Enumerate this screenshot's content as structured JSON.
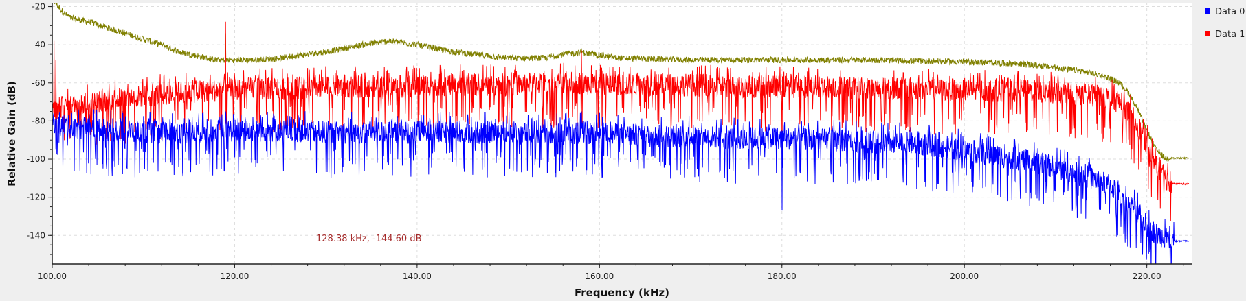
{
  "chart_data": {
    "type": "line",
    "title": "",
    "xlabel": "Frequency (kHz)",
    "ylabel": "Relative Gain (dB)",
    "xlim": [
      100,
      225
    ],
    "ylim": [
      -155,
      -18
    ],
    "x_ticks": [
      100,
      120,
      140,
      160,
      180,
      200,
      220
    ],
    "x_tick_labels": [
      "100.00",
      "120.00",
      "140.00",
      "160.00",
      "180.00",
      "200.00",
      "220.00"
    ],
    "y_ticks": [
      -20,
      -40,
      -60,
      -80,
      -100,
      -120,
      -140
    ],
    "y_tick_labels": [
      "-20",
      "-40",
      "-60",
      "-80",
      "-100",
      "-120",
      "-140"
    ],
    "grid": true,
    "legend_position": "right",
    "series": [
      {
        "name": "",
        "color": "#808000",
        "x": [
          100,
          101,
          102,
          104,
          106,
          108,
          110,
          112,
          114,
          116,
          118,
          120,
          122,
          125,
          128,
          131,
          134,
          137,
          140,
          143,
          146,
          150,
          154,
          156,
          158,
          162,
          170,
          180,
          190,
          200,
          206,
          210,
          213,
          215,
          217,
          218,
          219,
          220,
          221,
          222,
          223,
          224,
          225
        ],
        "values": [
          -16,
          -22,
          -26,
          -28,
          -31,
          -34,
          -37,
          -40,
          -44,
          -46,
          -48,
          -48,
          -48,
          -47,
          -45,
          -43,
          -40,
          -38,
          -40,
          -43,
          -45,
          -47,
          -47,
          -45,
          -44,
          -47,
          -48,
          -48,
          -48,
          -49,
          -50,
          -52,
          -54,
          -56,
          -60,
          -65,
          -74,
          -85,
          -95,
          -99.5,
          -99.5,
          -99.5,
          -99.5
        ],
        "noise": 1.6,
        "spikes": [
          [
            119,
            -34
          ],
          [
            158,
            -42
          ]
        ]
      },
      {
        "name": "Data 1",
        "color": "#ff0000",
        "x": [
          100,
          101,
          102,
          104,
          106,
          108,
          110,
          114,
          118,
          122,
          126,
          130,
          134,
          138,
          142,
          146,
          150,
          154,
          158,
          162,
          166,
          170,
          175,
          180,
          185,
          190,
          195,
          200,
          205,
          210,
          213,
          215,
          216,
          217,
          218,
          219,
          220,
          221,
          222,
          223,
          224,
          225
        ],
        "values": [
          -75,
          -73,
          -72,
          -71,
          -69,
          -68,
          -67,
          -65,
          -64,
          -63,
          -63,
          -62,
          -62,
          -62,
          -61,
          -61,
          -61,
          -60,
          -60,
          -61,
          -61,
          -61,
          -62,
          -62,
          -62,
          -63,
          -63,
          -64,
          -64,
          -65,
          -66,
          -67,
          -68,
          -70,
          -75,
          -82,
          -92,
          -102,
          -110,
          -113,
          -113,
          -113
        ],
        "noise": 6,
        "spikes": [
          [
            119,
            -28
          ],
          [
            100.2,
            -38
          ],
          [
            100.4,
            -48
          ],
          [
            158,
            -43
          ],
          [
            180,
            -100
          ],
          [
            221.5,
            -126
          ]
        ]
      },
      {
        "name": "Data 0",
        "color": "#0000ff",
        "x": [
          100,
          101,
          102,
          104,
          106,
          108,
          110,
          114,
          118,
          122,
          126,
          130,
          134,
          138,
          142,
          146,
          150,
          154,
          158,
          162,
          166,
          170,
          175,
          180,
          185,
          190,
          195,
          200,
          203,
          206,
          209,
          212,
          214,
          216,
          217,
          218,
          219,
          220,
          221,
          222,
          223,
          224,
          225
        ],
        "values": [
          -80,
          -82,
          -83,
          -84,
          -85,
          -85,
          -86,
          -86,
          -85,
          -85,
          -85,
          -86,
          -86,
          -86,
          -86,
          -86,
          -86,
          -87,
          -86,
          -87,
          -88,
          -88,
          -89,
          -89,
          -90,
          -91,
          -92,
          -95,
          -98,
          -100,
          -103,
          -107,
          -110,
          -114,
          -118,
          -123,
          -128,
          -135,
          -139,
          -141,
          -143,
          -143,
          -143
        ],
        "noise": 6,
        "spikes": [
          [
            158,
            -75
          ],
          [
            180,
            -127
          ],
          [
            119,
            -75
          ]
        ]
      }
    ],
    "annotation": {
      "text": "128.38 kHz, -144.60 dB",
      "color": "#a52a2a"
    }
  }
}
